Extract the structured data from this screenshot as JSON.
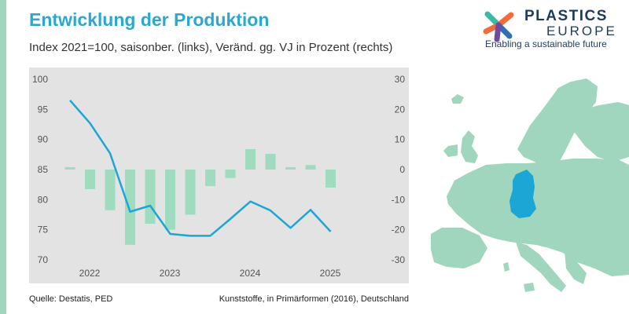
{
  "header": {
    "title": "Entwicklung der Produktion",
    "subtitle": "Index 2021=100, saisonber. (links), Veränd. gg. VJ in Prozent (rechts)"
  },
  "footer": {
    "source": "Quelle: Destatis, PED",
    "note": "Kunststoffe, in Primärformen (2016), Deutschland"
  },
  "brand": {
    "name_line1": "PLASTICS",
    "name_line2": "EUROPE",
    "tagline": "Enabling a sustainable future"
  },
  "colors": {
    "title": "#2aa8cf",
    "line": "#1ba6d6",
    "bars": "#9fdbbf",
    "chart_bg": "#e3e3e3",
    "map_land": "#9fd6bd",
    "map_highlight": "#1ba6d6",
    "logo_teal": "#3bb9a5",
    "logo_orange": "#f26b3a",
    "logo_blue": "#2f6fb3",
    "logo_purple": "#6d4ca0"
  },
  "chart_data": {
    "type": "bar+line",
    "title": "Entwicklung der Produktion",
    "subtitle": "Index 2021=100, saisonber. (links), Veränd. gg. VJ in Prozent (rechts)",
    "x_labels": [
      "2022",
      "2023",
      "2024",
      "2025"
    ],
    "left_axis": {
      "min": 70,
      "max": 100,
      "ticks": [
        100,
        95,
        90,
        85,
        80,
        75,
        70
      ]
    },
    "right_axis": {
      "min": -30,
      "max": 30,
      "ticks": [
        30,
        20,
        10,
        0,
        -10,
        -20,
        -30
      ]
    },
    "series": [
      {
        "name": "Index 2021=100, saisonber.",
        "type": "line",
        "axis": "left",
        "values": [
          96.5,
          92.7,
          87.7,
          78.0,
          79.0,
          74.3,
          74.0,
          74.0,
          76.8,
          79.7,
          78.2,
          75.3,
          78.3,
          74.7
        ]
      },
      {
        "name": "Veränd. gg. VJ in Prozent",
        "type": "bar",
        "axis": "right",
        "values": [
          0.8,
          -6.5,
          -13.5,
          -25.0,
          -18.0,
          -20.0,
          -15.0,
          -5.5,
          -2.8,
          6.8,
          5.2,
          0.8,
          1.5,
          -6.0
        ]
      }
    ],
    "grid": false,
    "legend": "none"
  }
}
